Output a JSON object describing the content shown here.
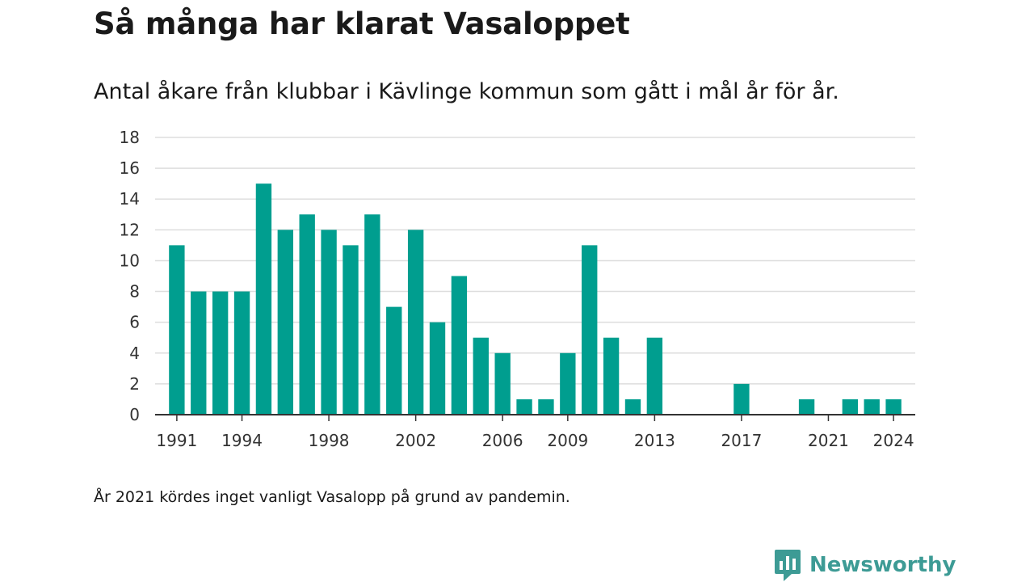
{
  "header": {
    "title": "Så många har klarat Vasaloppet",
    "subtitle": "Antal åkare från klubbar i Kävlinge kommun som gått i mål år för år."
  },
  "footer": {
    "note": "År 2021 kördes inget vanligt Vasalopp på grund av pandemin.",
    "brand": "Newsworthy",
    "brand_icon": "bar-chart-speech-bubble-icon"
  },
  "colors": {
    "bar": "#009e8f",
    "grid": "#dddddd",
    "axis": "#333333",
    "brand": "#3d9b95"
  },
  "chart_data": {
    "type": "bar",
    "x": [
      1991,
      1992,
      1993,
      1994,
      1995,
      1996,
      1997,
      1998,
      1999,
      2000,
      2001,
      2002,
      2003,
      2004,
      2005,
      2006,
      2007,
      2008,
      2009,
      2010,
      2011,
      2012,
      2013,
      2014,
      2015,
      2016,
      2017,
      2018,
      2019,
      2020,
      2021,
      2022,
      2023,
      2024
    ],
    "values": [
      11,
      8,
      8,
      8,
      15,
      12,
      13,
      12,
      11,
      13,
      7,
      12,
      6,
      9,
      5,
      4,
      1,
      1,
      4,
      11,
      5,
      1,
      5,
      0,
      0,
      0,
      2,
      0,
      0,
      1,
      0,
      1,
      1,
      1
    ],
    "x_tick_labels": [
      "1991",
      "1994",
      "1998",
      "2002",
      "2006",
      "2009",
      "2013",
      "2017",
      "2021",
      "2024"
    ],
    "y_ticks": [
      "0",
      "2",
      "4",
      "6",
      "8",
      "10",
      "12",
      "14",
      "16",
      "18"
    ],
    "ylim": [
      0,
      18
    ],
    "xlim": [
      1990,
      2025
    ],
    "grid": true,
    "legend": "none"
  }
}
